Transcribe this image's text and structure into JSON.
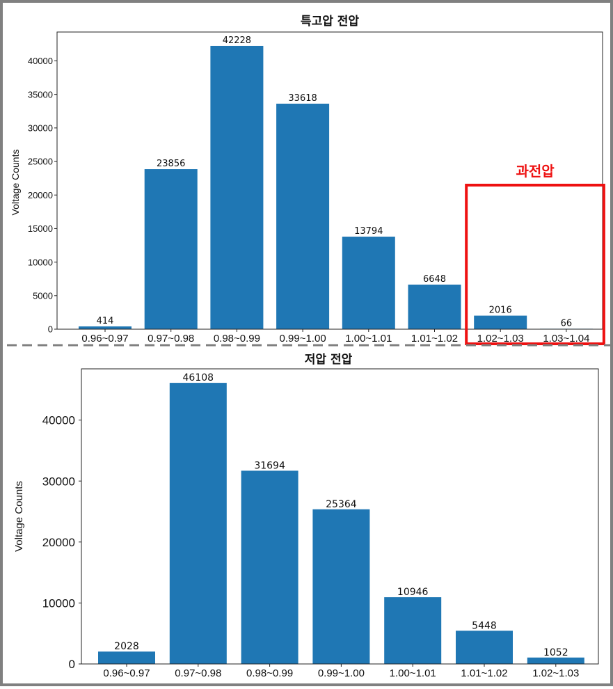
{
  "chart_data": [
    {
      "type": "bar",
      "title": "특고압 전압",
      "xlabel": "",
      "ylabel": "Voltage Counts",
      "categories": [
        "0.96~0.97",
        "0.97~0.98",
        "0.98~0.99",
        "0.99~1.00",
        "1.00~1.01",
        "1.01~1.02",
        "1.02~1.03",
        "1.03~1.04"
      ],
      "values": [
        414,
        23856,
        42228,
        33618,
        13794,
        6648,
        2016,
        66
      ],
      "ylim": [
        0,
        44300
      ],
      "yticks": [
        0,
        5000,
        10000,
        15000,
        20000,
        25000,
        30000,
        35000,
        40000
      ],
      "grid": false,
      "bar_color": "#1f77b4",
      "annotation": {
        "label": "과전압",
        "covers_categories": [
          "1.02~1.03",
          "1.03~1.04"
        ],
        "color": "#ee1111"
      }
    },
    {
      "type": "bar",
      "title": "저압 전압",
      "xlabel": "",
      "ylabel": "Voltage Counts",
      "categories": [
        "0.96~0.97",
        "0.97~0.98",
        "0.98~0.99",
        "0.99~1.00",
        "1.00~1.01",
        "1.01~1.02",
        "1.02~1.03"
      ],
      "values": [
        2028,
        46108,
        31694,
        25364,
        10946,
        5448,
        1052
      ],
      "ylim": [
        0,
        48400
      ],
      "yticks": [
        0,
        10000,
        20000,
        30000,
        40000
      ],
      "grid": false,
      "bar_color": "#1f77b4"
    }
  ],
  "colors": {
    "frame": "#808080",
    "divider": "#808080"
  }
}
